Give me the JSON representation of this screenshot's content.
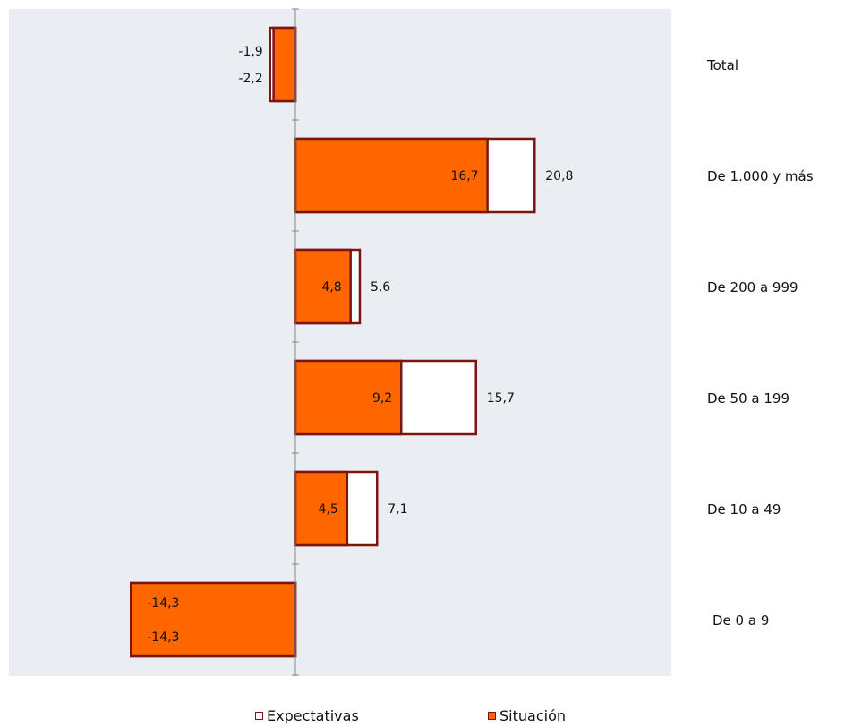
{
  "chart_data": {
    "type": "bar",
    "orientation": "horizontal",
    "categories": [
      "Total",
      "De 1.000 y más",
      "De 200 a 999",
      "De 50 a 199",
      "De 10 a 49",
      "De 0 a 9"
    ],
    "series": [
      {
        "name": "Expectativas",
        "values": [
          -2.2,
          20.8,
          5.6,
          15.7,
          7.1,
          -14.3
        ],
        "color": "#ffffff",
        "border": "#7a1512"
      },
      {
        "name": "Situación",
        "values": [
          -1.9,
          16.7,
          4.8,
          9.2,
          4.5,
          -14.3
        ],
        "color": "#ff6600",
        "border": "#7a1512"
      }
    ],
    "data_labels": {
      "Expectativas": [
        "-2,2",
        "20,8",
        "5,6",
        "15,7",
        "7,1",
        "-14,3"
      ],
      "Situación": [
        "-1,9",
        "16,7",
        "4,8",
        "9,2",
        "4,5",
        "-14,3"
      ]
    },
    "xlim": [
      -25,
      35
    ],
    "grid": false,
    "legend_position": "bottom",
    "plot_background": "#eaedf1"
  }
}
